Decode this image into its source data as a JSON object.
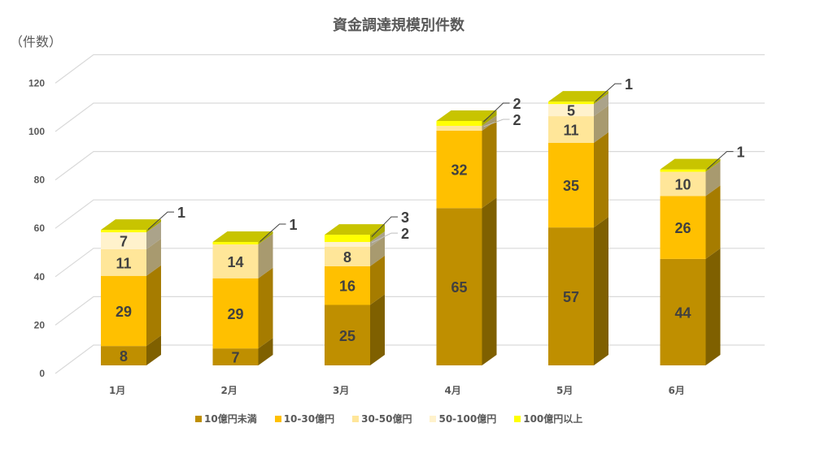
{
  "title": "資金調達規模別件数",
  "unit_label": "（件数）",
  "legend": [
    {
      "label": "10億円未満",
      "color": "#bf8f00"
    },
    {
      "label": "10-30億円",
      "color": "#ffc000"
    },
    {
      "label": "30-50億円",
      "color": "#ffe699"
    },
    {
      "label": "50-100億円",
      "color": "#fff2cc"
    },
    {
      "label": "100億円以上",
      "color": "#ffff00"
    }
  ],
  "chart_data": {
    "type": "bar",
    "stacked": true,
    "three_d": true,
    "title": "資金調達規模別件数",
    "ylabel": "（件数）",
    "xlabel": "",
    "categories": [
      "1月",
      "2月",
      "3月",
      "4月",
      "5月",
      "6月"
    ],
    "series": [
      {
        "name": "10億円未満",
        "color": "#bf8f00",
        "side": "#7f6000",
        "values": [
          8,
          7,
          25,
          65,
          57,
          44
        ]
      },
      {
        "name": "10-30億円",
        "color": "#ffc000",
        "side": "#a67c00",
        "values": [
          29,
          29,
          16,
          32,
          35,
          26
        ]
      },
      {
        "name": "30-50億円",
        "color": "#ffe699",
        "side": "#a89a6f",
        "values": [
          11,
          14,
          8,
          2,
          11,
          10
        ]
      },
      {
        "name": "50-100億円",
        "color": "#fff2cc",
        "side": "#aba38a",
        "values": [
          7,
          0,
          2,
          0,
          5,
          0
        ]
      },
      {
        "name": "100億円以上",
        "color": "#ffff00",
        "side": "#a8a800",
        "values": [
          1,
          1,
          3,
          2,
          1,
          1
        ]
      }
    ],
    "yticks": [
      0,
      20,
      40,
      60,
      80,
      100,
      120
    ],
    "ylim": [
      0,
      120
    ],
    "grid": true,
    "legend_position": "bottom",
    "data_labels_inside": [
      [
        "8",
        "29",
        "11",
        "7",
        ""
      ],
      [
        "7",
        "29",
        "14",
        "",
        ""
      ],
      [
        "25",
        "16",
        "8",
        "",
        ""
      ],
      [
        "65",
        "32",
        "",
        "",
        ""
      ],
      [
        "57",
        "35",
        "11",
        "5",
        ""
      ],
      [
        "44",
        "26",
        "10",
        "",
        ""
      ]
    ],
    "callout_labels": [
      [
        {
          "text": "1",
          "series": 4
        }
      ],
      [
        {
          "text": "1",
          "series": 4
        }
      ],
      [
        {
          "text": "3",
          "series": 4
        },
        {
          "text": "2",
          "series": 3
        }
      ],
      [
        {
          "text": "2",
          "series": 4
        },
        {
          "text": "2",
          "series": 2
        }
      ],
      [
        {
          "text": "1",
          "series": 4
        }
      ],
      [
        {
          "text": "1",
          "series": 4
        }
      ]
    ]
  }
}
